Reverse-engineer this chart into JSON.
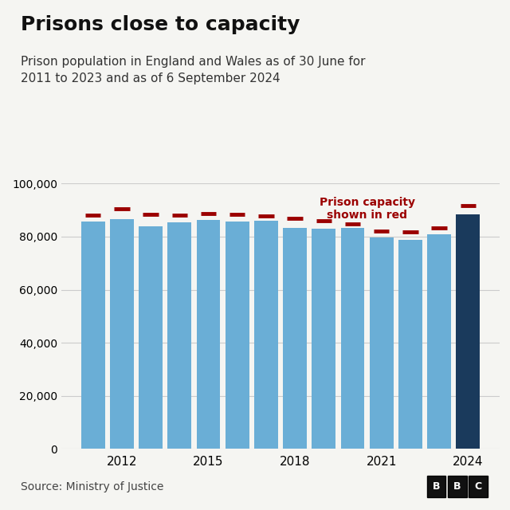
{
  "title": "Prisons close to capacity",
  "subtitle": "Prison population in England and Wales as of 30 June for\n2011 to 2023 and as of 6 September 2024",
  "source": "Source: Ministry of Justice",
  "years": [
    2011,
    2012,
    2013,
    2014,
    2015,
    2016,
    2017,
    2018,
    2019,
    2020,
    2021,
    2022,
    2023,
    2024
  ],
  "population": [
    85600,
    86600,
    84000,
    85500,
    86200,
    85600,
    85900,
    83200,
    83000,
    83200,
    79600,
    78700,
    80900,
    88500
  ],
  "capacity": [
    88200,
    90500,
    88400,
    88200,
    88800,
    88300,
    87800,
    87000,
    86000,
    84700,
    82000,
    81800,
    83400,
    91700
  ],
  "bar_colors_normal": "#6aaed6",
  "bar_color_2024": "#1a3a5c",
  "capacity_color": "#9b0000",
  "annotation_text": "Prison capacity\nshown in red",
  "annotation_color": "#9b0000",
  "background_color": "#f5f5f2",
  "ylim": [
    0,
    100000
  ],
  "yticks": [
    0,
    20000,
    40000,
    60000,
    80000,
    100000
  ],
  "xlabel_years": [
    2012,
    2015,
    2018,
    2021,
    2024
  ],
  "title_fontsize": 18,
  "subtitle_fontsize": 11,
  "source_fontsize": 10,
  "bbc_box_color": "#111111"
}
